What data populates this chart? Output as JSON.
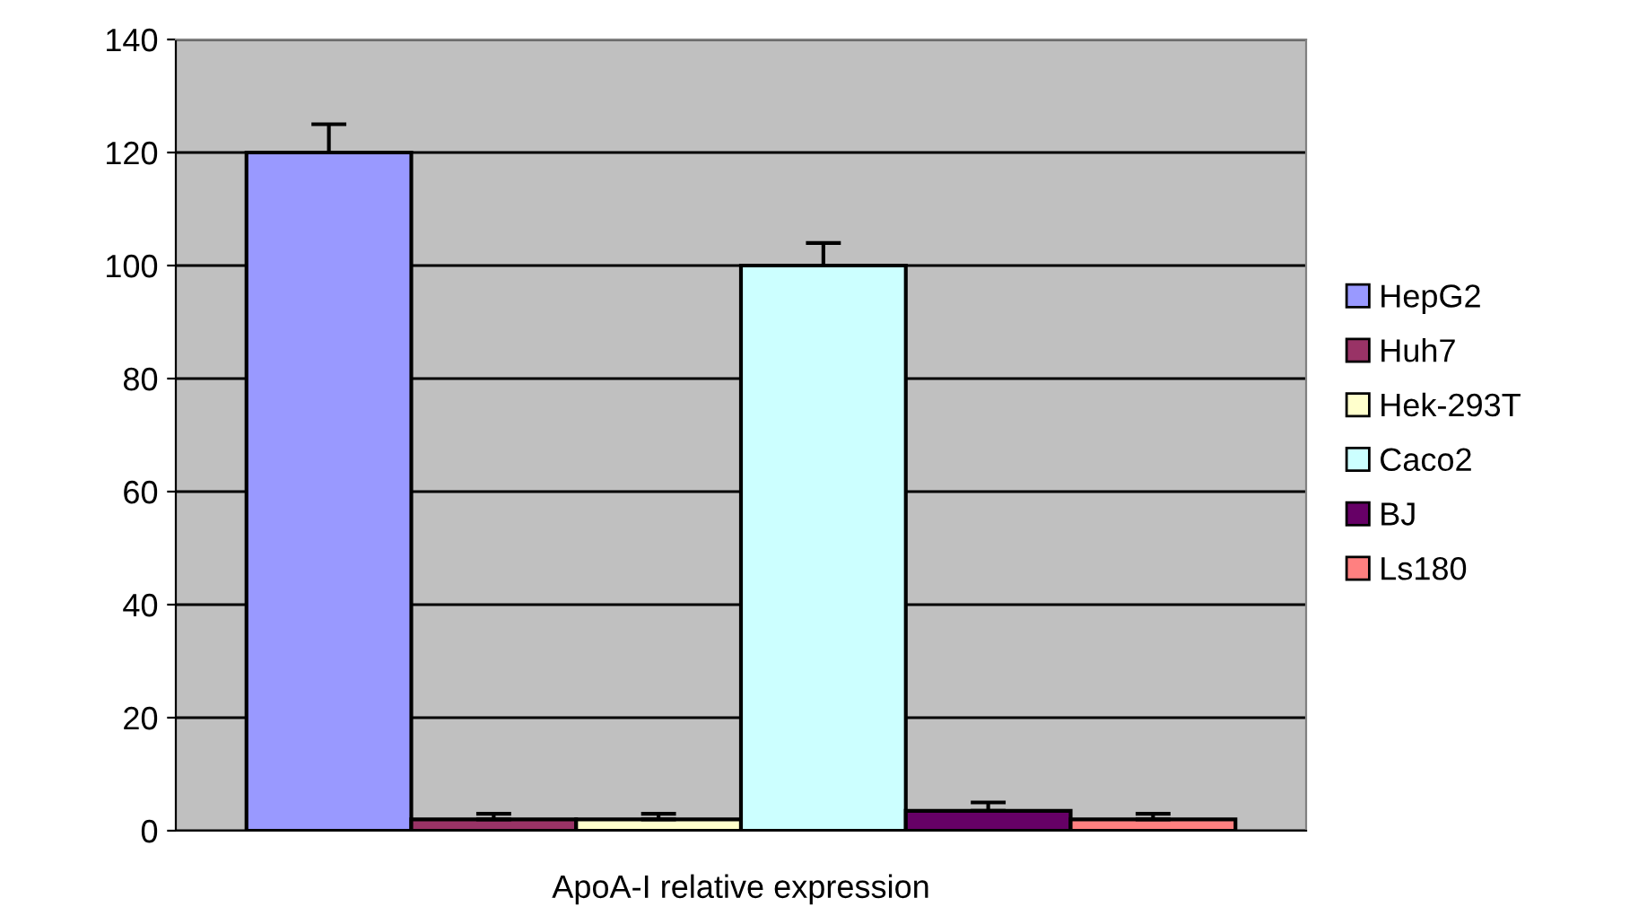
{
  "chart_data": {
    "type": "bar",
    "xlabel": "ApoA-I relative expression",
    "categories": [
      null
    ],
    "series": [
      {
        "name": "HepG2",
        "color": "#9999ff",
        "values": [
          120
        ],
        "errors": [
          [
            120,
            125
          ]
        ]
      },
      {
        "name": "Huh7",
        "color": "#993366",
        "values": [
          2
        ],
        "errors": [
          [
            2,
            3
          ]
        ]
      },
      {
        "name": "Hek-293T",
        "color": "#ffffcc",
        "values": [
          2
        ],
        "errors": [
          [
            2,
            3
          ]
        ]
      },
      {
        "name": "Caco2",
        "color": "#ccffff",
        "values": [
          100
        ],
        "errors": [
          [
            100,
            104
          ]
        ]
      },
      {
        "name": "BJ",
        "color": "#660066",
        "values": [
          3.5
        ],
        "errors": [
          [
            3.5,
            5
          ]
        ]
      },
      {
        "name": "Ls180",
        "color": "#ff8080",
        "values": [
          2
        ],
        "errors": [
          [
            2,
            3
          ]
        ]
      }
    ],
    "ylim": [
      0,
      140
    ],
    "yticks": [
      0,
      20,
      40,
      60,
      80,
      100,
      120,
      140
    ],
    "grid": "y",
    "legend": "right"
  }
}
